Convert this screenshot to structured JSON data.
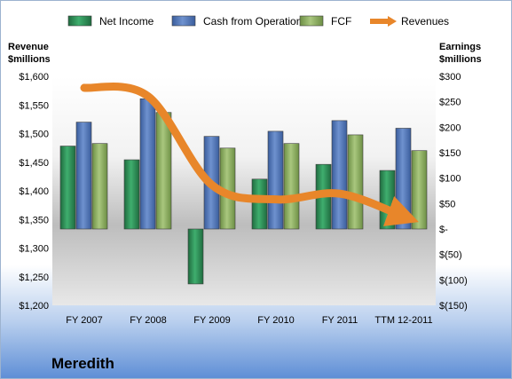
{
  "chart_data": {
    "type": "bar",
    "title": "Meredith",
    "categories": [
      "FY 2007",
      "FY 2008",
      "FY 2009",
      "FY 2010",
      "FY 2011",
      "TTM 12-2011"
    ],
    "series": [
      {
        "name": "Net Income",
        "axis": "right",
        "color": "#2e8b57",
        "values": [
          163,
          136,
          -108,
          98,
          127,
          115
        ]
      },
      {
        "name": "Cash from Operations",
        "axis": "right",
        "color": "#4a6fb0",
        "values": [
          210,
          256,
          182,
          192,
          213,
          198
        ]
      },
      {
        "name": "FCF",
        "axis": "right",
        "color": "#8aab5e",
        "values": [
          168,
          229,
          159,
          168,
          185,
          154
        ]
      },
      {
        "name": "Revenues",
        "axis": "left",
        "type": "line",
        "color": "#e8862a",
        "values": [
          1580,
          1565,
          1410,
          1385,
          1395,
          1355
        ]
      }
    ],
    "left_axis": {
      "label_line1": "Revenue",
      "label_line2": "$millions",
      "ylim": [
        1200,
        1600
      ],
      "ticks": [
        1200,
        1250,
        1300,
        1350,
        1400,
        1450,
        1500,
        1550,
        1600
      ],
      "tick_labels": [
        "$1,200",
        "$1,250",
        "$1,300",
        "$1,350",
        "$1,400",
        "$1,450",
        "$1,500",
        "$1,550",
        "$1,600"
      ]
    },
    "right_axis": {
      "label_line1": "Earnings",
      "label_line2": "$millions",
      "ylim": [
        -150,
        300
      ],
      "ticks": [
        -150,
        -100,
        -50,
        0,
        50,
        100,
        150,
        200,
        250,
        300
      ],
      "tick_labels": [
        "$(150)",
        "$(100)",
        "$(50)",
        "$-",
        "$50",
        "$100",
        "$150",
        "$200",
        "$250",
        "$300"
      ]
    },
    "legend_position": "top",
    "grid": false
  }
}
